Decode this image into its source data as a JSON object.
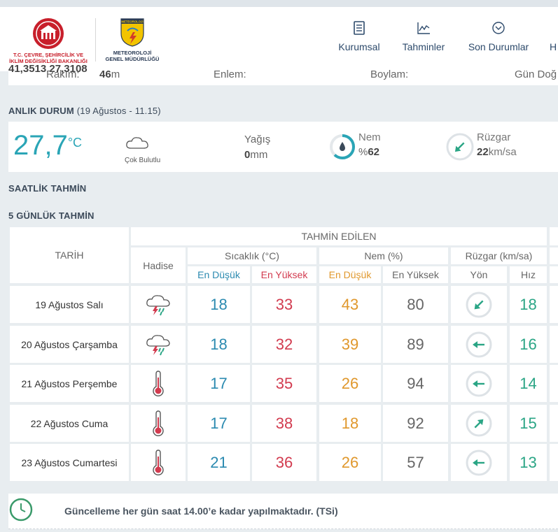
{
  "header": {
    "logo_ministry_text": "T.C. ÇEVRE, ŞEHİRCİLİK VE İKLİM DEĞİŞİKLİĞİ BAKANLIĞI",
    "logo_mgm_badge": "METEOROLOJİ",
    "logo_mgm_text_line1": "METEOROLOJİ",
    "logo_mgm_text_line2": "GENEL MÜDÜRLÜĞÜ",
    "nav": [
      {
        "label": "Kurumsal",
        "icon": "document-icon"
      },
      {
        "label": "Tahminler",
        "icon": "chart-icon"
      },
      {
        "label": "Son Durumlar",
        "icon": "chevron-circle-icon"
      },
      {
        "label": "H"
      }
    ]
  },
  "station": {
    "rakim_label": "Rakım:",
    "rakim_value": "46",
    "rakim_unit": "m",
    "enlem_label": "Enlem:",
    "enlem_value": "41,3513",
    "boylam_label": "Boylam:",
    "boylam_value": "27,3108",
    "gun_label": "Gün Doğ"
  },
  "now": {
    "title": "ANLIK DURUM",
    "subtitle": "(19 Ağustos - 11.15)",
    "temp_value": "27,7",
    "temp_unit": "°C",
    "condition": "Çok Bulutlu",
    "rain_label": "Yağış",
    "rain_value": "0",
    "rain_unit": "mm",
    "humidity_label": "Nem",
    "humidity_prefix": "%",
    "humidity_value": "62",
    "humidity_fraction": 0.62,
    "wind_label": "Rüzgar",
    "wind_value": "22",
    "wind_unit": "km/sa"
  },
  "hourly": {
    "title": "SAATLİK TAHMİN"
  },
  "forecast": {
    "title": "5 GÜNLÜK TAHMİN",
    "headers": {
      "tarih": "TARİH",
      "tahmin_edilen": "TAHMİN EDİLEN",
      "hadise": "Hadise",
      "sicaklik": "Sıcaklık (°C)",
      "nem": "Nem (%)",
      "ruzgar": "Rüzgar (km/sa)",
      "en_dusuk": "En Düşük",
      "en_yuksek": "En Yüksek",
      "nem_en_dusuk": "En Düşük",
      "nem_en_yuksek": "En Yüksek",
      "yon": "Yön",
      "hiz": "Hız"
    },
    "rows": [
      {
        "date": "19 Ağustos Salı",
        "icon": "thunderstorm-icon",
        "tmin": "18",
        "tmax": "33",
        "hmin": "43",
        "hmax": "80",
        "wind_dir_deg": 225,
        "wind_speed": "18"
      },
      {
        "date": "20 Ağustos Çarşamba",
        "icon": "thunderstorm-icon",
        "tmin": "18",
        "tmax": "32",
        "hmin": "39",
        "hmax": "89",
        "wind_dir_deg": 270,
        "wind_speed": "16"
      },
      {
        "date": "21 Ağustos Perşembe",
        "icon": "thermometer-icon",
        "tmin": "17",
        "tmax": "35",
        "hmin": "26",
        "hmax": "94",
        "wind_dir_deg": 270,
        "wind_speed": "14"
      },
      {
        "date": "22 Ağustos Cuma",
        "icon": "thermometer-icon",
        "tmin": "17",
        "tmax": "38",
        "hmin": "18",
        "hmax": "92",
        "wind_dir_deg": 45,
        "wind_speed": "15"
      },
      {
        "date": "23 Ağustos Cumartesi",
        "icon": "thermometer-icon",
        "tmin": "21",
        "tmax": "36",
        "hmin": "26",
        "hmax": "57",
        "wind_dir_deg": 270,
        "wind_speed": "13"
      }
    ]
  },
  "footer": {
    "text": "Güncelleme her gün saat 14.00’e kadar yapılmaktadır. (TSi)"
  },
  "colors": {
    "accent_teal": "#2aa5b6",
    "wind_teal": "#2aa585",
    "temp_min_blue": "#2b8ab0",
    "temp_max_red": "#d23b4f",
    "hum_min_orange": "#e0982d",
    "brand_red": "#c81f2b",
    "nav_blue": "#2d4a6b"
  }
}
